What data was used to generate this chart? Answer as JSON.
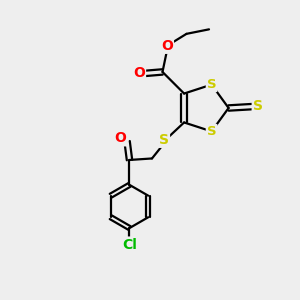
{
  "bg_color": "#eeeeee",
  "atom_colors": {
    "S": "#cccc00",
    "O": "#ff0000",
    "Cl": "#00bb00",
    "C": "#000000"
  },
  "bond_color": "#000000",
  "bond_width": 1.6,
  "figsize": [
    3.0,
    3.0
  ],
  "dpi": 100,
  "xlim": [
    0,
    10
  ],
  "ylim": [
    0,
    10
  ]
}
